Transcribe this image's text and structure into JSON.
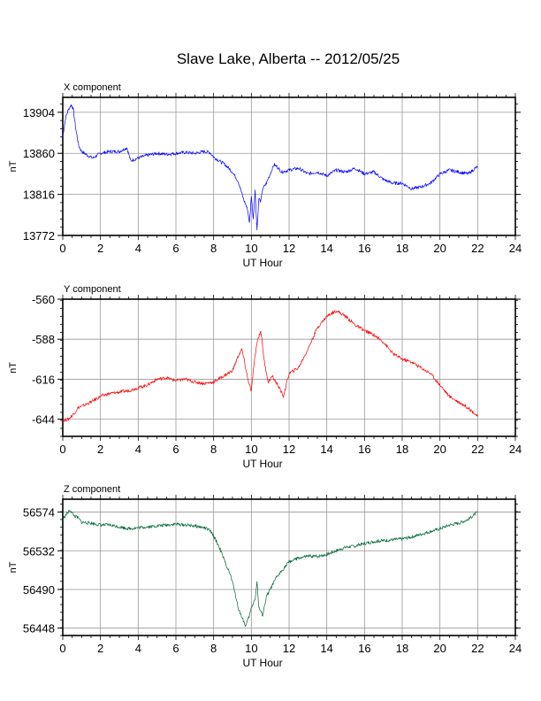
{
  "title": "Slave Lake, Alberta -- 2012/05/25",
  "chart_data": [
    {
      "type": "line",
      "subtitle": "X component",
      "ylabel": "nT",
      "xlabel": "UT Hour",
      "xlim": [
        0,
        24
      ],
      "ylim": [
        13772,
        13920
      ],
      "xticks": [
        0,
        2,
        4,
        6,
        8,
        10,
        12,
        14,
        16,
        18,
        20,
        22,
        24
      ],
      "yticks": [
        13772,
        13816,
        13860,
        13904
      ],
      "grid": true,
      "color": "#0000ff",
      "series": [
        {
          "x": [
            0,
            0.15,
            0.3,
            0.45,
            0.55,
            0.7,
            0.85,
            1.0,
            1.3,
            1.6,
            2.0,
            2.5,
            3.0,
            3.4,
            3.6,
            4.0,
            4.5,
            5.0,
            5.5,
            6.0,
            6.5,
            7.0,
            7.5,
            7.8,
            8.0,
            8.3,
            8.6,
            9.0,
            9.3,
            9.6,
            9.8,
            9.9,
            10.0,
            10.1,
            10.2,
            10.3,
            10.4,
            10.5,
            10.6,
            10.8,
            11.0,
            11.2,
            11.4,
            11.6,
            12.0,
            12.5,
            13.0,
            13.5,
            14.0,
            14.5,
            15.0,
            15.5,
            16.0,
            16.5,
            17.0,
            17.5,
            18.0,
            18.5,
            19.0,
            19.5,
            20.0,
            20.5,
            21.0,
            21.5,
            22.0
          ],
          "y": [
            13878,
            13898,
            13907,
            13912,
            13908,
            13885,
            13868,
            13862,
            13858,
            13855,
            13860,
            13862,
            13862,
            13866,
            13852,
            13855,
            13858,
            13860,
            13859,
            13860,
            13861,
            13860,
            13862,
            13861,
            13856,
            13852,
            13848,
            13840,
            13830,
            13810,
            13800,
            13785,
            13815,
            13790,
            13820,
            13778,
            13812,
            13808,
            13822,
            13828,
            13838,
            13848,
            13845,
            13840,
            13842,
            13844,
            13838,
            13840,
            13836,
            13842,
            13840,
            13844,
            13838,
            13840,
            13832,
            13828,
            13828,
            13822,
            13824,
            13828,
            13838,
            13842,
            13840,
            13838,
            13846
          ]
        }
      ]
    },
    {
      "type": "line",
      "subtitle": "Y component",
      "ylabel": "nT",
      "xlabel": "UT Hour",
      "xlim": [
        0,
        24
      ],
      "ylim": [
        -656,
        -560
      ],
      "xticks": [
        0,
        2,
        4,
        6,
        8,
        10,
        12,
        14,
        16,
        18,
        20,
        22,
        24
      ],
      "yticks": [
        -560,
        -588,
        -616,
        -644
      ],
      "grid": true,
      "color": "#ff0000",
      "series": [
        {
          "x": [
            0,
            0.3,
            0.6,
            0.8,
            1.0,
            1.5,
            2.0,
            2.5,
            3.0,
            3.5,
            4.0,
            4.5,
            5.0,
            5.5,
            6.0,
            6.5,
            7.0,
            7.5,
            8.0,
            8.5,
            9.0,
            9.3,
            9.5,
            9.8,
            10.0,
            10.1,
            10.3,
            10.5,
            10.7,
            10.9,
            11.1,
            11.4,
            11.7,
            12.0,
            12.5,
            13.0,
            13.5,
            14.0,
            14.5,
            15.0,
            15.5,
            16.0,
            16.5,
            17.0,
            17.5,
            18.0,
            18.5,
            19.0,
            19.5,
            20.0,
            20.5,
            21.0,
            21.5,
            22.0
          ],
          "y": [
            -645,
            -644,
            -640,
            -636,
            -635,
            -632,
            -628,
            -626,
            -625,
            -624,
            -622,
            -620,
            -616,
            -615,
            -617,
            -616,
            -618,
            -619,
            -618,
            -614,
            -610,
            -600,
            -595,
            -615,
            -625,
            -610,
            -590,
            -582,
            -605,
            -618,
            -614,
            -620,
            -628,
            -612,
            -608,
            -595,
            -580,
            -572,
            -568,
            -572,
            -578,
            -582,
            -585,
            -590,
            -598,
            -602,
            -604,
            -608,
            -612,
            -620,
            -628,
            -632,
            -636,
            -642
          ]
        }
      ]
    },
    {
      "type": "line",
      "subtitle": "Z component",
      "ylabel": "nT",
      "xlabel": "UT Hour",
      "xlim": [
        0,
        24
      ],
      "ylim": [
        56440,
        56588
      ],
      "xticks": [
        0,
        2,
        4,
        6,
        8,
        10,
        12,
        14,
        16,
        18,
        20,
        22,
        24
      ],
      "yticks": [
        56448,
        56490,
        56532,
        56574
      ],
      "grid": true,
      "color": "#006633",
      "series": [
        {
          "x": [
            0,
            0.2,
            0.4,
            0.6,
            0.8,
            1.0,
            1.5,
            2.0,
            2.5,
            3.0,
            3.5,
            4.0,
            4.5,
            5.0,
            5.5,
            6.0,
            6.5,
            7.0,
            7.5,
            7.8,
            8.0,
            8.3,
            8.6,
            8.9,
            9.1,
            9.3,
            9.5,
            9.6,
            9.7,
            9.9,
            10.0,
            10.2,
            10.3,
            10.4,
            10.6,
            10.8,
            11.0,
            11.3,
            11.6,
            12.0,
            12.5,
            13.0,
            13.5,
            14.0,
            14.5,
            15.0,
            15.5,
            16.0,
            16.5,
            17.0,
            17.5,
            18.0,
            18.5,
            19.0,
            19.5,
            20.0,
            20.5,
            21.0,
            21.5,
            22.0
          ],
          "y": [
            56566,
            56572,
            56576,
            56570,
            56568,
            56563,
            56562,
            56560,
            56560,
            56558,
            56556,
            56557,
            56558,
            56559,
            56560,
            56561,
            56560,
            56559,
            56557,
            56554,
            56548,
            56536,
            56520,
            56505,
            56490,
            56470,
            56460,
            56455,
            56450,
            56462,
            56470,
            56480,
            56498,
            56470,
            56462,
            56482,
            56490,
            56502,
            56510,
            56520,
            56524,
            56526,
            56526,
            56528,
            56532,
            56536,
            56537,
            56540,
            56542,
            56543,
            56544,
            56545,
            56547,
            56550,
            56553,
            56556,
            56560,
            56562,
            56566,
            56574
          ]
        }
      ]
    }
  ]
}
